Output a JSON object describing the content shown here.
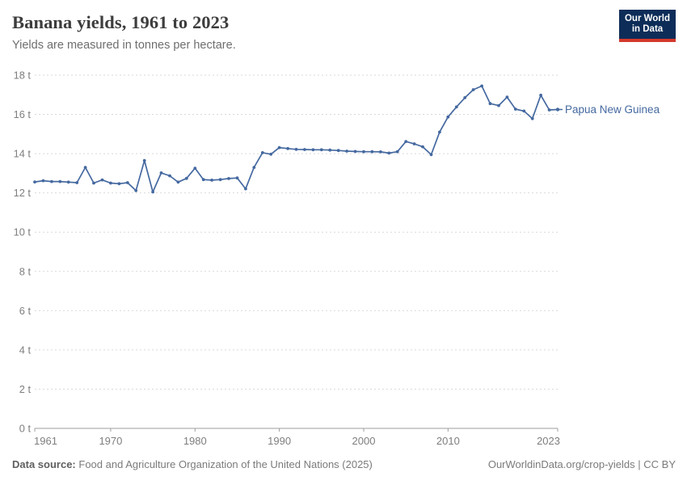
{
  "header": {
    "title": "Banana yields, 1961 to 2023",
    "subtitle": "Yields are measured in tonnes per hectare."
  },
  "logo": {
    "line1": "Our World",
    "line2": "in Data"
  },
  "footer": {
    "source_label": "Data source:",
    "source_text": "Food and Agriculture Organization of the United Nations (2025)",
    "attribution": "OurWorldinData.org/crop-yields | CC BY"
  },
  "colors": {
    "line": "#4569a0",
    "entity_label": "#4569a0",
    "grid": "#d9d9d9",
    "axis": "#9e9e9e",
    "tick_label": "#7e7e7e",
    "title": "#3d3d3d",
    "subtitle": "#6e6e6e",
    "footer": "#7b7b7b",
    "footer_label": "#5f5f5f",
    "logo_bg": "#0d2d58",
    "logo_accent": "#d4392c"
  },
  "chart_data": {
    "type": "line",
    "title": "Banana yields, 1961 to 2023",
    "subtitle": "Yields are measured in tonnes per hectare.",
    "unit": "tonnes per hectare",
    "xlim": [
      1961,
      2023
    ],
    "ylim": [
      0,
      18
    ],
    "grid": "horizontal-dashed",
    "legend_position": "end-of-line-label",
    "x_ticks": [
      1961,
      1970,
      1980,
      1990,
      2000,
      2010,
      2023
    ],
    "x_tick_labels": [
      "1961",
      "1970",
      "1980",
      "1990",
      "2000",
      "2010",
      "2023"
    ],
    "y_ticks": [
      0,
      2,
      4,
      6,
      8,
      10,
      12,
      14,
      16,
      18
    ],
    "y_tick_labels": [
      "0 t",
      "2 t",
      "4 t",
      "6 t",
      "8 t",
      "10 t",
      "12 t",
      "14 t",
      "16 t",
      "18 t"
    ],
    "x": [
      1961,
      1962,
      1963,
      1964,
      1965,
      1966,
      1967,
      1968,
      1969,
      1970,
      1971,
      1972,
      1973,
      1974,
      1975,
      1976,
      1977,
      1978,
      1979,
      1980,
      1981,
      1982,
      1983,
      1984,
      1985,
      1986,
      1987,
      1988,
      1989,
      1990,
      1991,
      1992,
      1993,
      1994,
      1995,
      1996,
      1997,
      1998,
      1999,
      2000,
      2001,
      2002,
      2003,
      2004,
      2005,
      2006,
      2007,
      2008,
      2009,
      2010,
      2011,
      2012,
      2013,
      2014,
      2015,
      2016,
      2017,
      2018,
      2019,
      2020,
      2021,
      2022,
      2023
    ],
    "series": [
      {
        "name": "Papua New Guinea",
        "values": [
          12.56,
          12.62,
          12.58,
          12.58,
          12.55,
          12.52,
          13.3,
          12.5,
          12.66,
          12.5,
          12.47,
          12.52,
          12.12,
          13.65,
          12.05,
          13.02,
          12.87,
          12.55,
          12.74,
          13.26,
          12.68,
          12.65,
          12.68,
          12.73,
          12.76,
          12.21,
          13.3,
          14.05,
          13.97,
          14.31,
          14.26,
          14.22,
          14.21,
          14.2,
          14.2,
          14.18,
          14.16,
          14.13,
          14.11,
          14.1,
          14.1,
          14.09,
          14.03,
          14.1,
          14.62,
          14.5,
          14.35,
          13.95,
          15.1,
          15.87,
          16.38,
          16.85,
          17.26,
          17.45,
          16.55,
          16.45,
          16.88,
          16.27,
          16.17,
          15.79,
          16.98,
          16.23,
          16.25
        ]
      }
    ]
  }
}
